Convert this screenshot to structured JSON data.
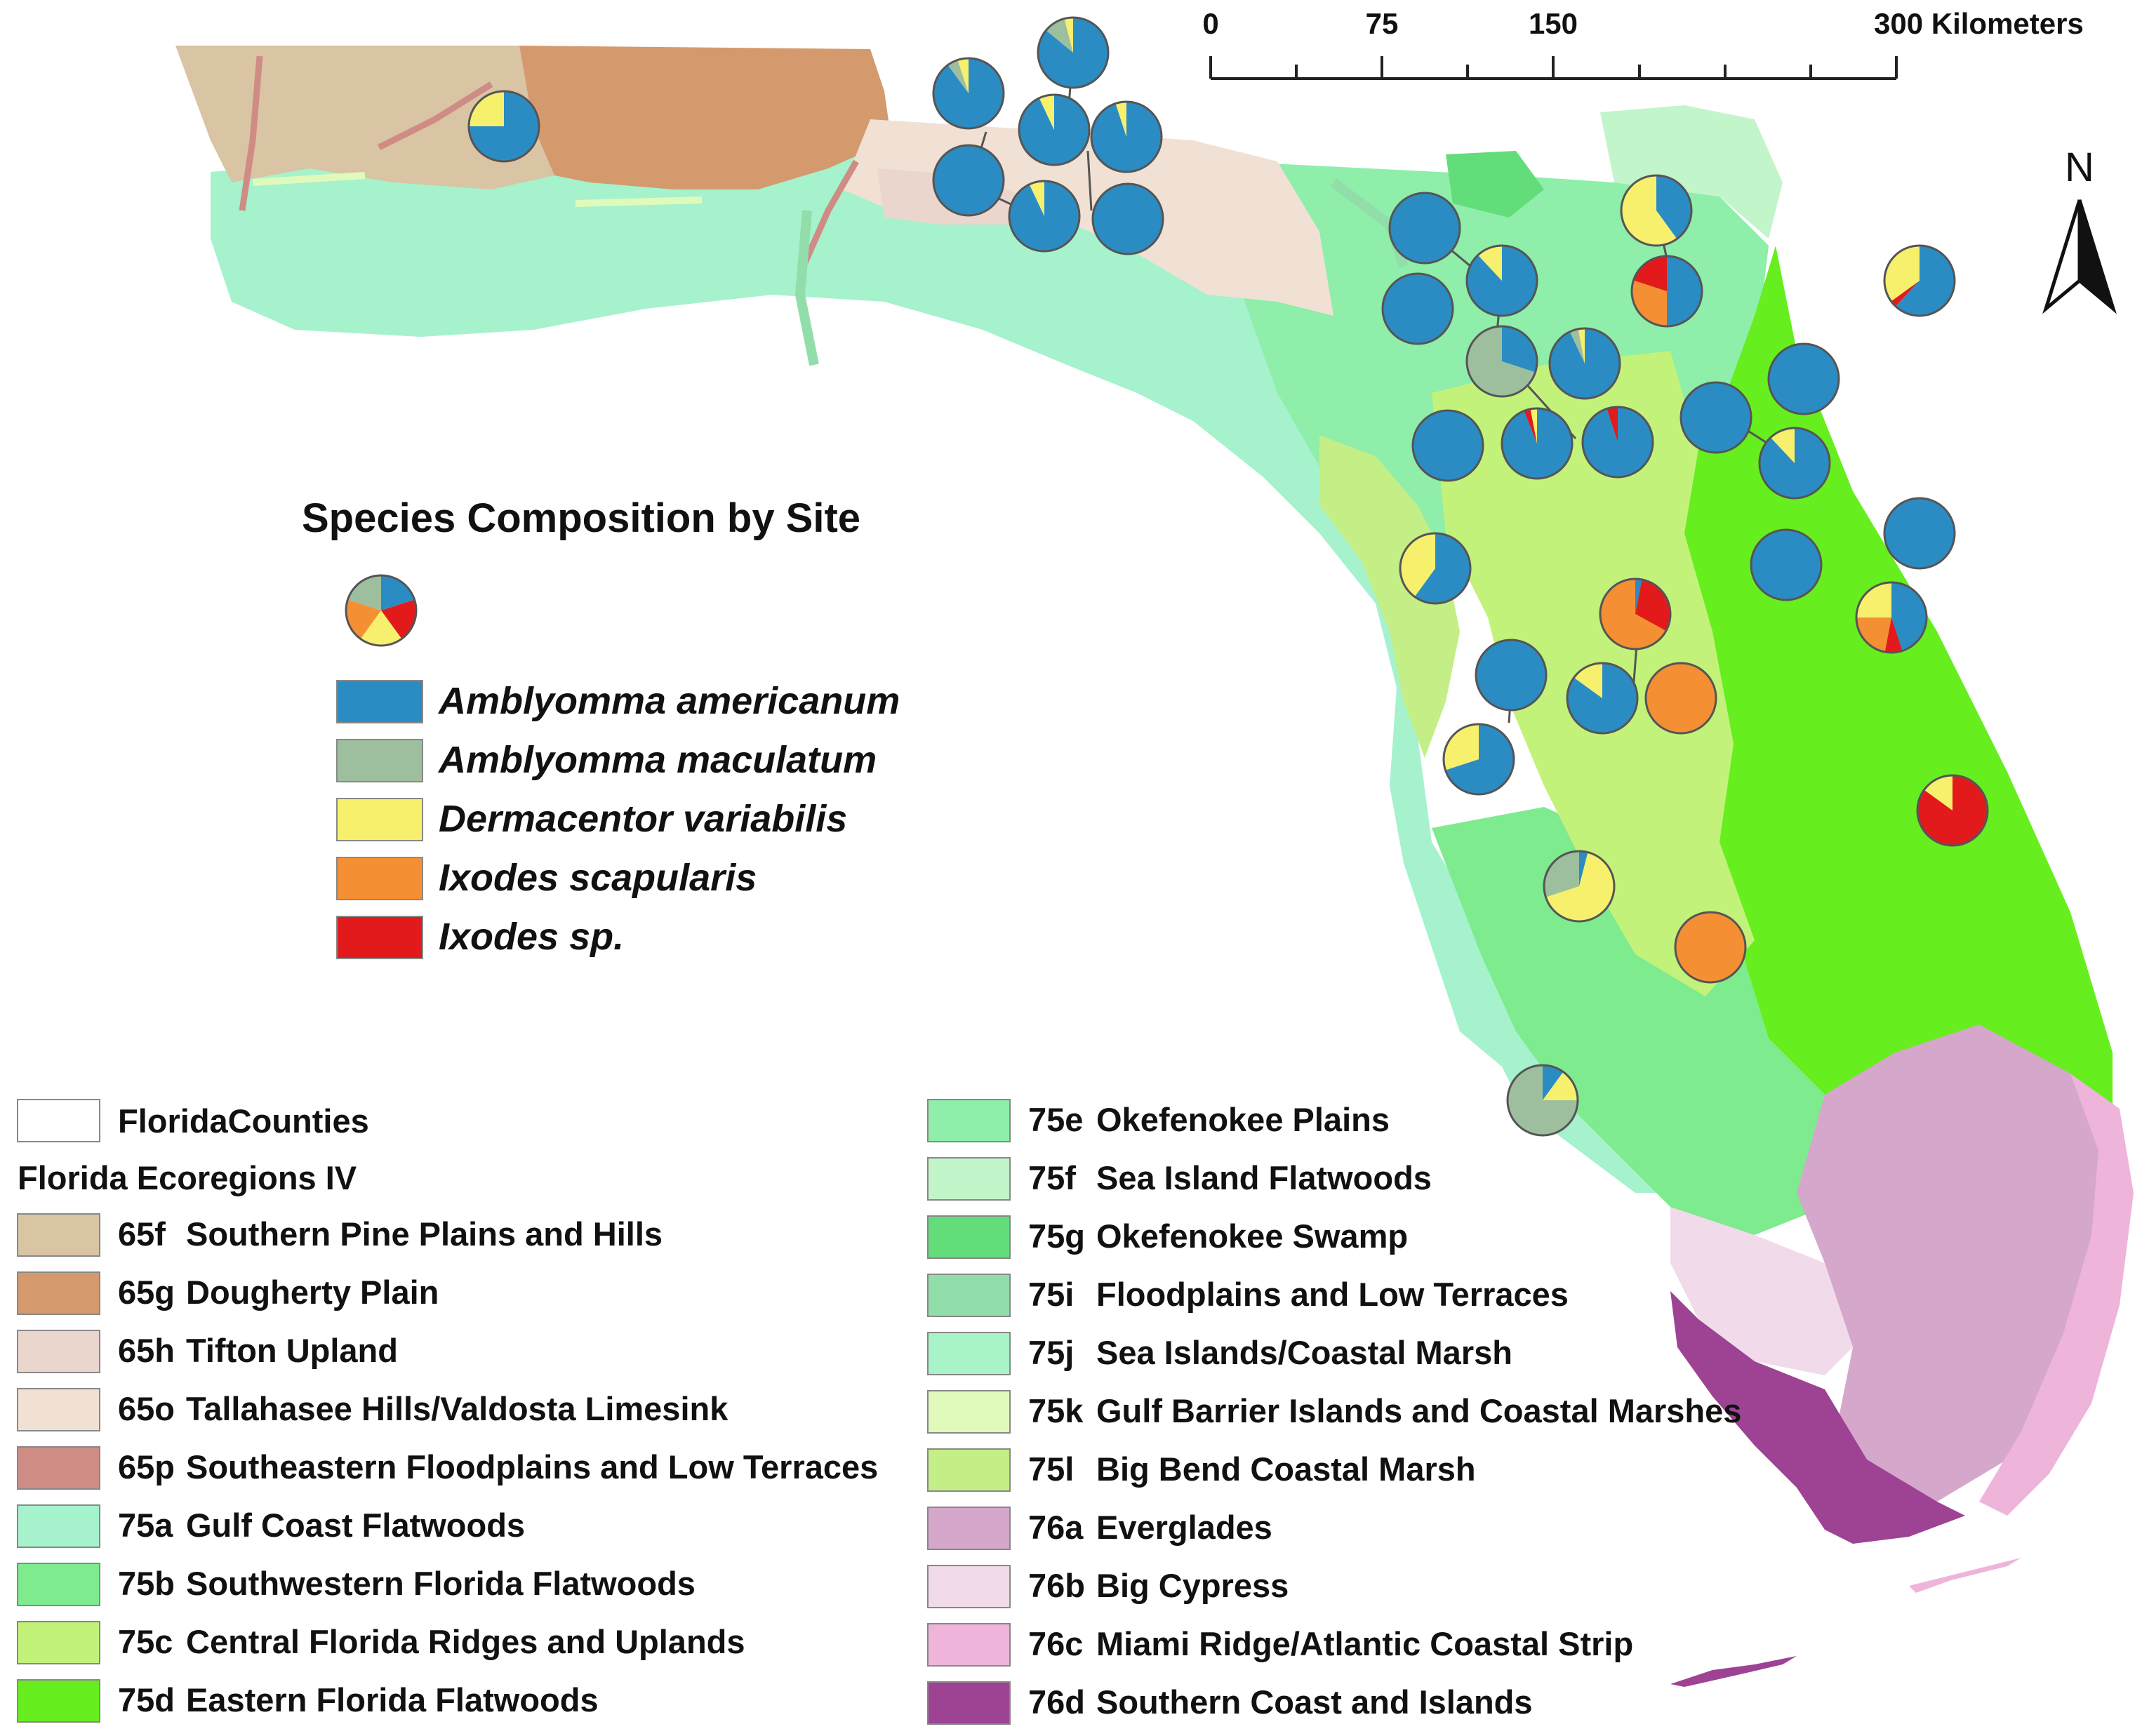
{
  "title": "Species Composition by Site",
  "species": [
    {
      "key": "aam",
      "name": "Amblyomma americanum",
      "color": "#2b8cc4"
    },
    {
      "key": "ama",
      "name": "Amblyomma maculatum",
      "color": "#9dbf9e"
    },
    {
      "key": "dva",
      "name": "Dermacentor variabilis",
      "color": "#f7f06d"
    },
    {
      "key": "isc",
      "name": "Ixodes scapularis",
      "color": "#f58f33"
    },
    {
      "key": "isp",
      "name": "Ixodes sp.",
      "color": "#e31a1c"
    }
  ],
  "example_pie": {
    "aam": 0.2,
    "isp": 0.2,
    "dva": 0.2,
    "isc": 0.2,
    "ama": 0.2
  },
  "scale_bar": {
    "ticks": [
      "0",
      "75",
      "150",
      "300 Kilometers"
    ]
  },
  "north_arrow": "N",
  "legend": {
    "counties_label": "FloridaCounties",
    "ecoregions_title": "Florida Ecoregions IV",
    "ecoregions": [
      {
        "code": "65f",
        "name": "Southern Pine Plains and Hills",
        "color": "#d9c4a3"
      },
      {
        "code": "65g",
        "name": "Dougherty Plain",
        "color": "#d49a6e"
      },
      {
        "code": "65h",
        "name": "Tifton Upland",
        "color": "#ebd6cd"
      },
      {
        "code": "65o",
        "name": "Tallahasee Hills/Valdosta Limesink",
        "color": "#f0e1d4"
      },
      {
        "code": "65p",
        "name": "Southeastern Floodplains and Low Terraces",
        "color": "#cf8c84"
      },
      {
        "code": "75a",
        "name": "Gulf Coast Flatwoods",
        "color": "#a5f2cd"
      },
      {
        "code": "75b",
        "name": "Southwestern Florida Flatwoods",
        "color": "#7eeb8e"
      },
      {
        "code": "75c",
        "name": "Central Florida Ridges and Uplands",
        "color": "#c3f27a"
      },
      {
        "code": "75d",
        "name": "Eastern Florida Flatwoods",
        "color": "#66ee1e"
      },
      {
        "code": "75e",
        "name": "Okefenokee Plains",
        "color": "#8eeeaa"
      },
      {
        "code": "75f",
        "name": "Sea Island Flatwoods",
        "color": "#c3f5cb"
      },
      {
        "code": "75g",
        "name": "Okefenokee Swamp",
        "color": "#63dc7a"
      },
      {
        "code": "75i",
        "name": "Floodplains and Low Terraces",
        "color": "#92deaa"
      },
      {
        "code": "75j",
        "name": "Sea Islands/Coastal Marsh",
        "color": "#a8f3c7"
      },
      {
        "code": "75k",
        "name": "Gulf Barrier Islands and Coastal Marshes",
        "color": "#e0fabc"
      },
      {
        "code": "75l",
        "name": "Big Bend Coastal Marsh",
        "color": "#c4ee86"
      },
      {
        "code": "76a",
        "name": "Everglades",
        "color": "#d4a7cb"
      },
      {
        "code": "76b",
        "name": "Big Cypress",
        "color": "#f1dbea"
      },
      {
        "code": "76c",
        "name": "Miami Ridge/Atlantic Coastal Strip",
        "color": "#eeb4da"
      },
      {
        "code": "76d",
        "name": "Southern Coast and Islands",
        "color": "#9e4294"
      }
    ]
  },
  "sites": [
    {
      "id": "s01",
      "composition": {
        "aam": 0.75,
        "dva": 0.25
      }
    },
    {
      "id": "s02",
      "composition": {
        "aam": 0.86,
        "ama": 0.1,
        "dva": 0.04
      }
    },
    {
      "id": "s03",
      "composition": {
        "aam": 0.9,
        "ama": 0.05,
        "dva": 0.05
      }
    },
    {
      "id": "s04",
      "composition": {
        "aam": 0.93,
        "dva": 0.07
      }
    },
    {
      "id": "s05",
      "composition": {
        "aam": 0.95,
        "dva": 0.05
      }
    },
    {
      "id": "s06",
      "composition": {
        "aam": 1.0
      }
    },
    {
      "id": "s07",
      "composition": {
        "aam": 0.93,
        "dva": 0.07
      }
    },
    {
      "id": "s08",
      "composition": {
        "aam": 1.0
      }
    },
    {
      "id": "s09",
      "composition": {
        "aam": 1.0
      }
    },
    {
      "id": "s10",
      "composition": {
        "aam": 0.88,
        "dva": 0.12
      }
    },
    {
      "id": "s11",
      "composition": {
        "aam": 1.0
      }
    },
    {
      "id": "s12",
      "composition": {
        "aam": 0.4,
        "dva": 0.6
      }
    },
    {
      "id": "s13",
      "composition": {
        "aam": 0.5,
        "isc": 0.3,
        "isp": 0.2
      }
    },
    {
      "id": "s14",
      "composition": {
        "aam": 0.3,
        "ama": 0.7
      }
    },
    {
      "id": "s15",
      "composition": {
        "aam": 0.93,
        "ama": 0.04,
        "dva": 0.03
      }
    },
    {
      "id": "s16",
      "composition": {
        "aam": 1.0
      }
    },
    {
      "id": "s17",
      "composition": {
        "aam": 1.0
      }
    },
    {
      "id": "s18",
      "composition": {
        "aam": 0.94,
        "isp": 0.03,
        "dva": 0.03
      }
    },
    {
      "id": "s19",
      "composition": {
        "aam": 0.95,
        "isp": 0.05
      }
    },
    {
      "id": "s20",
      "composition": {
        "aam": 1.0
      }
    },
    {
      "id": "s21",
      "composition": {
        "aam": 0.88,
        "dva": 0.12
      }
    },
    {
      "id": "s22",
      "composition": {
        "aam": 1.0
      }
    },
    {
      "id": "s23",
      "composition": {
        "aam": 0.62,
        "isp": 0.03,
        "dva": 0.35
      }
    },
    {
      "id": "s24",
      "composition": {
        "aam": 0.6,
        "dva": 0.4
      }
    },
    {
      "id": "s25",
      "composition": {
        "aam": 1.0
      }
    },
    {
      "id": "s26",
      "composition": {
        "aam": 0.45,
        "isp": 0.08,
        "isc": 0.22,
        "dva": 0.25
      }
    },
    {
      "id": "s27",
      "composition": {
        "aam": 0.03,
        "isp": 0.3,
        "isc": 0.67
      }
    },
    {
      "id": "s28",
      "composition": {
        "aam": 1.0
      }
    },
    {
      "id": "s29",
      "composition": {
        "aam": 0.85,
        "dva": 0.15
      }
    },
    {
      "id": "s30",
      "composition": {
        "isc": 1.0
      }
    },
    {
      "id": "s31",
      "composition": {
        "aam": 0.7,
        "dva": 0.3
      }
    },
    {
      "id": "s32",
      "composition": {
        "isp": 0.85,
        "dva": 0.15
      }
    },
    {
      "id": "s33",
      "composition": {
        "aam": 0.04,
        "dva": 0.66,
        "ama": 0.3
      }
    },
    {
      "id": "s34",
      "composition": {
        "isc": 1.0
      }
    },
    {
      "id": "s35",
      "composition": {
        "aam": 0.1,
        "dva": 0.15,
        "ama": 0.75
      }
    }
  ]
}
